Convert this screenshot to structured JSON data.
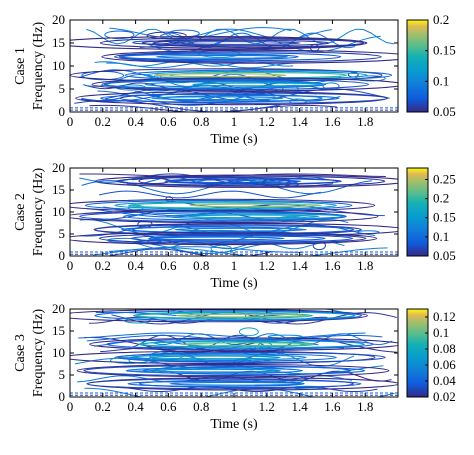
{
  "chart_data": [
    {
      "type": "contour",
      "case_label": "Case 1",
      "xlabel": "Time (s)",
      "ylabel": "Frequency (Hz)",
      "xlim": [
        0,
        2
      ],
      "ylim": [
        0,
        20
      ],
      "xticks": [
        "0",
        "0.2",
        "0.4",
        "0.6",
        "0.8",
        "1",
        "1.2",
        "1.4",
        "1.6",
        "1.8"
      ],
      "yticks": [
        "0",
        "5",
        "10",
        "15",
        "20"
      ],
      "colorbar": {
        "ticks": [
          "0.05",
          "0.1",
          "0.15",
          "0.2"
        ],
        "range": [
          0.05,
          0.2
        ]
      },
      "dominant_bands": [
        {
          "freq_hz": 8.0,
          "level": 0.18
        },
        {
          "freq_hz": 6.0,
          "level": 0.12
        },
        {
          "freq_hz": 3.0,
          "level": 0.1
        },
        {
          "freq_hz": 12.0,
          "level": 0.09
        },
        {
          "freq_hz": 15.0,
          "level": 0.06
        }
      ]
    },
    {
      "type": "contour",
      "case_label": "Case 2",
      "xlabel": "Time (s)",
      "ylabel": "Frequency (Hz)",
      "xlim": [
        0,
        2
      ],
      "ylim": [
        0,
        20
      ],
      "xticks": [
        "0",
        "0.2",
        "0.4",
        "0.6",
        "0.8",
        "1",
        "1.2",
        "1.4",
        "1.6",
        "1.8"
      ],
      "yticks": [
        "0",
        "5",
        "10",
        "15",
        "20"
      ],
      "colorbar": {
        "ticks": [
          "0.05",
          "0.1",
          "0.15",
          "0.2",
          "0.25"
        ],
        "range": [
          0.05,
          0.28
        ]
      },
      "dominant_bands": [
        {
          "freq_hz": 11.5,
          "level": 0.24
        },
        {
          "freq_hz": 9.0,
          "level": 0.16
        },
        {
          "freq_hz": 6.0,
          "level": 0.12
        },
        {
          "freq_hz": 4.0,
          "level": 0.1
        },
        {
          "freq_hz": 17.0,
          "level": 0.08
        }
      ]
    },
    {
      "type": "contour",
      "case_label": "Case 3",
      "xlabel": "Time (s)",
      "ylabel": "Frequency (Hz)",
      "xlim": [
        0,
        2
      ],
      "ylim": [
        0,
        20
      ],
      "xticks": [
        "0",
        "0.2",
        "0.4",
        "0.6",
        "0.8",
        "1",
        "1.2",
        "1.4",
        "1.6",
        "1.8"
      ],
      "yticks": [
        "0",
        "5",
        "10",
        "15",
        "20"
      ],
      "colorbar": {
        "ticks": [
          "0.02",
          "0.04",
          "0.06",
          "0.08",
          "0.1",
          "0.12"
        ],
        "range": [
          0.02,
          0.13
        ]
      },
      "dominant_bands": [
        {
          "freq_hz": 18.5,
          "level": 0.11
        },
        {
          "freq_hz": 12.0,
          "level": 0.1
        },
        {
          "freq_hz": 9.0,
          "level": 0.07
        },
        {
          "freq_hz": 6.0,
          "level": 0.06
        },
        {
          "freq_hz": 3.0,
          "level": 0.05
        }
      ]
    }
  ]
}
